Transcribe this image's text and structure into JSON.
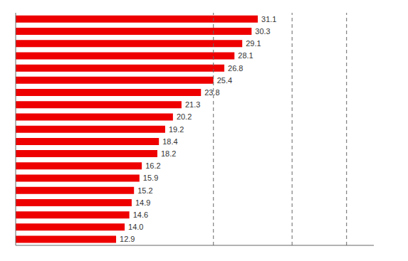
{
  "chart_data": {
    "type": "bar",
    "orientation": "horizontal",
    "categories": [
      null,
      null,
      null,
      null,
      null,
      null,
      null,
      null,
      null,
      null,
      null,
      null,
      null,
      null,
      null,
      null,
      null,
      null,
      null
    ],
    "values": [
      31.1,
      30.3,
      29.1,
      28.1,
      26.8,
      25.4,
      23.8,
      21.3,
      20.2,
      19.2,
      18.4,
      18.2,
      16.2,
      15.9,
      15.2,
      14.9,
      14.6,
      14.0,
      12.9
    ],
    "value_labels": [
      "31.1",
      "30.3",
      "29.1",
      "28.1",
      "26.8",
      "25.4",
      "23.8",
      "21.3",
      "20.2",
      "19.2",
      "18.4",
      "18.2",
      "16.2",
      "15.9",
      "15.2",
      "14.9",
      "14.6",
      "14.0",
      "12.9"
    ],
    "color": "#ee0000",
    "reference_lines": [
      25.4,
      35.5,
      42.5
    ],
    "xlim": [
      0,
      46
    ],
    "data_labels": true,
    "tick_labels": false,
    "grid": false
  }
}
